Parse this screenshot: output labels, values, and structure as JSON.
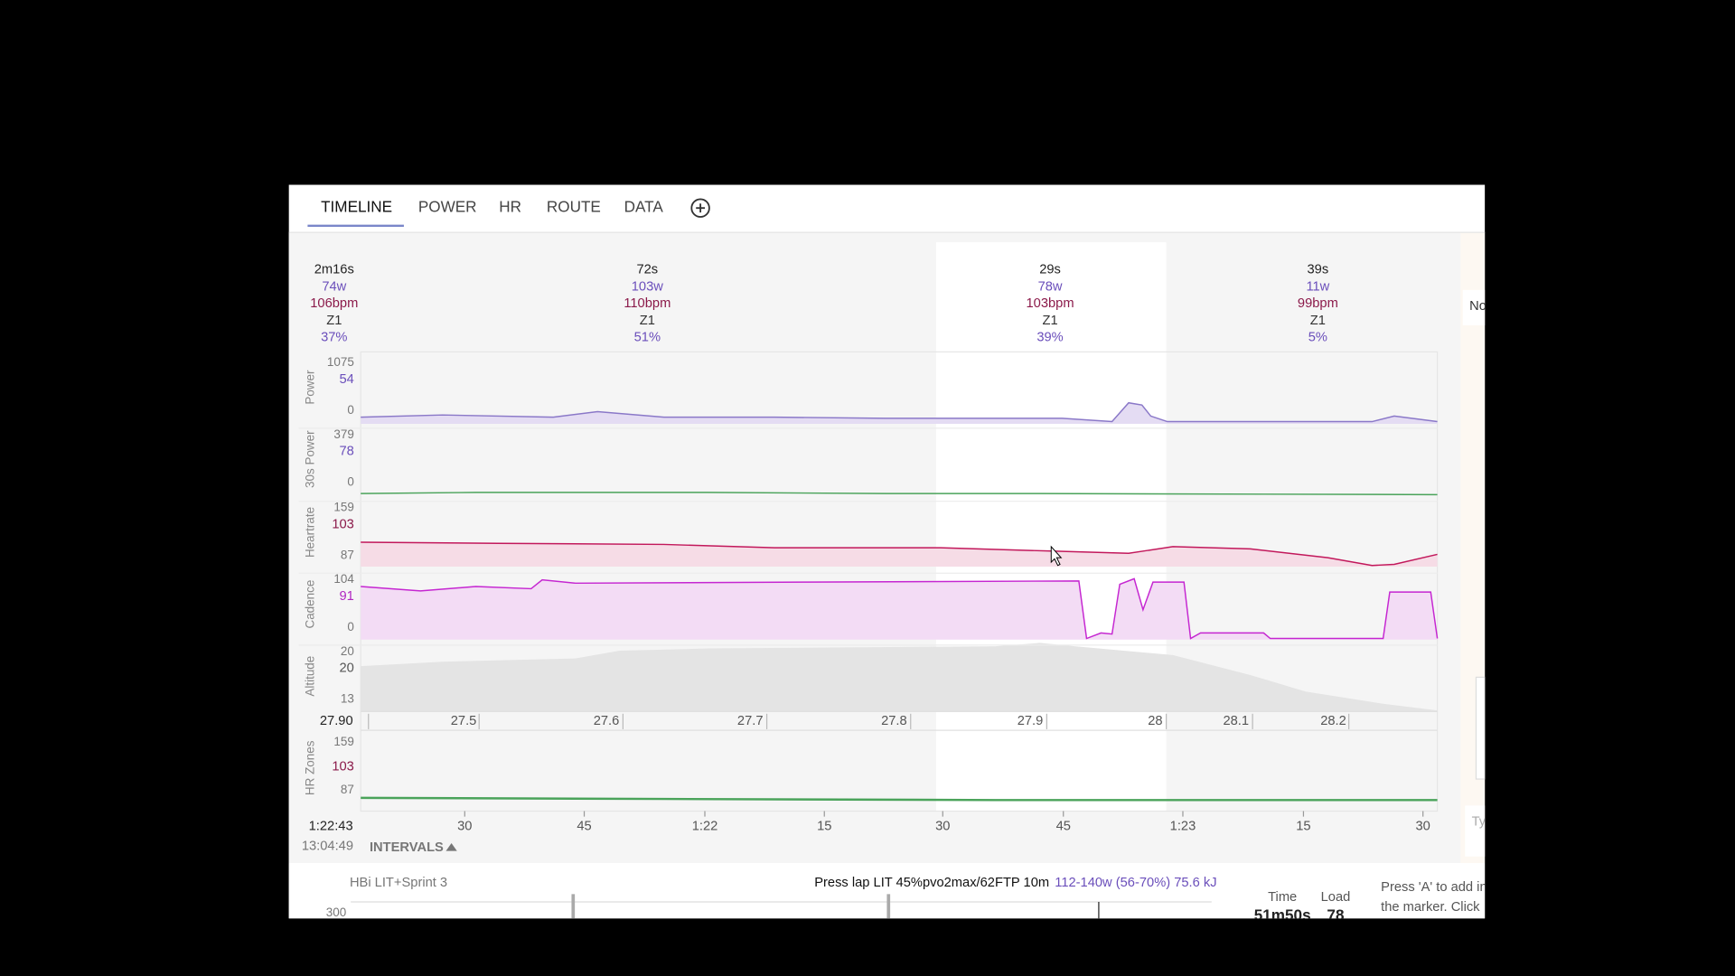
{
  "tabs": [
    "TIMELINE",
    "POWER",
    "HR",
    "ROUTE",
    "DATA"
  ],
  "intervals": [
    {
      "duration": "2m16s",
      "power": "74w",
      "hr": "106bpm",
      "zone": "Z1",
      "percent": "37%"
    },
    {
      "duration": "72s",
      "power": "103w",
      "hr": "110bpm",
      "zone": "Z1",
      "percent": "51%"
    },
    {
      "duration": "29s",
      "power": "78w",
      "hr": "103bpm",
      "zone": "Z1",
      "percent": "39%"
    },
    {
      "duration": "39s",
      "power": "11w",
      "hr": "99bpm",
      "zone": "Z1",
      "percent": "5%"
    }
  ],
  "rows": [
    {
      "label": "Power",
      "max": "1075",
      "current": "54",
      "min": "0"
    },
    {
      "label": "30s Power",
      "max": "379",
      "current": "78",
      "min": "0"
    },
    {
      "label": "Heartrate",
      "max": "159",
      "current": "103",
      "min": "87"
    },
    {
      "label": "Cadence",
      "max": "104",
      "current": "91",
      "min": "0"
    },
    {
      "label": "Altitude",
      "max": "20",
      "current": "20",
      "min": "13"
    }
  ],
  "distance": {
    "current": "27.90",
    "ticks": [
      "27.5",
      "27.6",
      "27.7",
      "27.8",
      "27.9",
      "28",
      "28.1",
      "28.2"
    ]
  },
  "hr_zones": {
    "label": "HR Zones",
    "max": "159",
    "current": "103",
    "min": "87"
  },
  "time": {
    "current": "1:22:43",
    "clock": "13:04:49",
    "ticks": [
      "30",
      "45",
      "1:22",
      "15",
      "30",
      "45",
      "1:23",
      "15",
      "30"
    ]
  },
  "intervals_toggle": "INTERVALS",
  "side_panel": {
    "top": "No",
    "bottom": "Ty"
  },
  "workout": {
    "name": "HBi LIT+Sprint 3",
    "step": "Press lap LIT 45%pvo2max/62FTP 10m",
    "target": "112-140w (56-70%) 75.6 kJ",
    "axis_label": "300",
    "time_label": "Time",
    "time_value": "51m50s",
    "load_label": "Load",
    "load_value": "78",
    "hint": [
      "Press 'A' to add in",
      "the marker. Click"
    ]
  }
}
